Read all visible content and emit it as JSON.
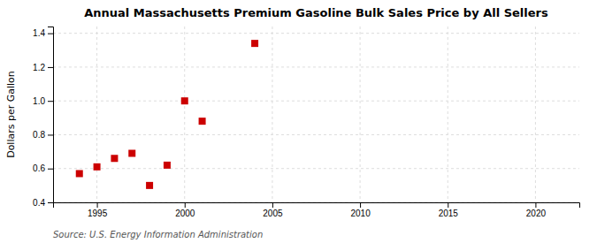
{
  "chart_data": {
    "type": "scatter",
    "title": "Annual Massachusetts Premium Gasoline Bulk Sales Price by All Sellers",
    "ylabel": "Dollars per Gallon",
    "source": "Source: U.S. Energy Information Administration",
    "x": [
      1994,
      1995,
      1996,
      1997,
      1998,
      1999,
      2000,
      2001,
      2004
    ],
    "values": [
      0.57,
      0.61,
      0.66,
      0.69,
      0.5,
      0.62,
      1.0,
      0.88,
      1.34
    ],
    "color": "#cc0000",
    "marker": "square",
    "xlim": [
      1992.5,
      2022.5
    ],
    "ylim": [
      0.4,
      1.44
    ],
    "xticks": [
      1995,
      2000,
      2005,
      2010,
      2015,
      2020
    ],
    "yticks": [
      0.4,
      0.6,
      0.8,
      {
        "value": 1.0,
        "label": "1.0"
      },
      1.2,
      1.4
    ],
    "grid": true
  }
}
